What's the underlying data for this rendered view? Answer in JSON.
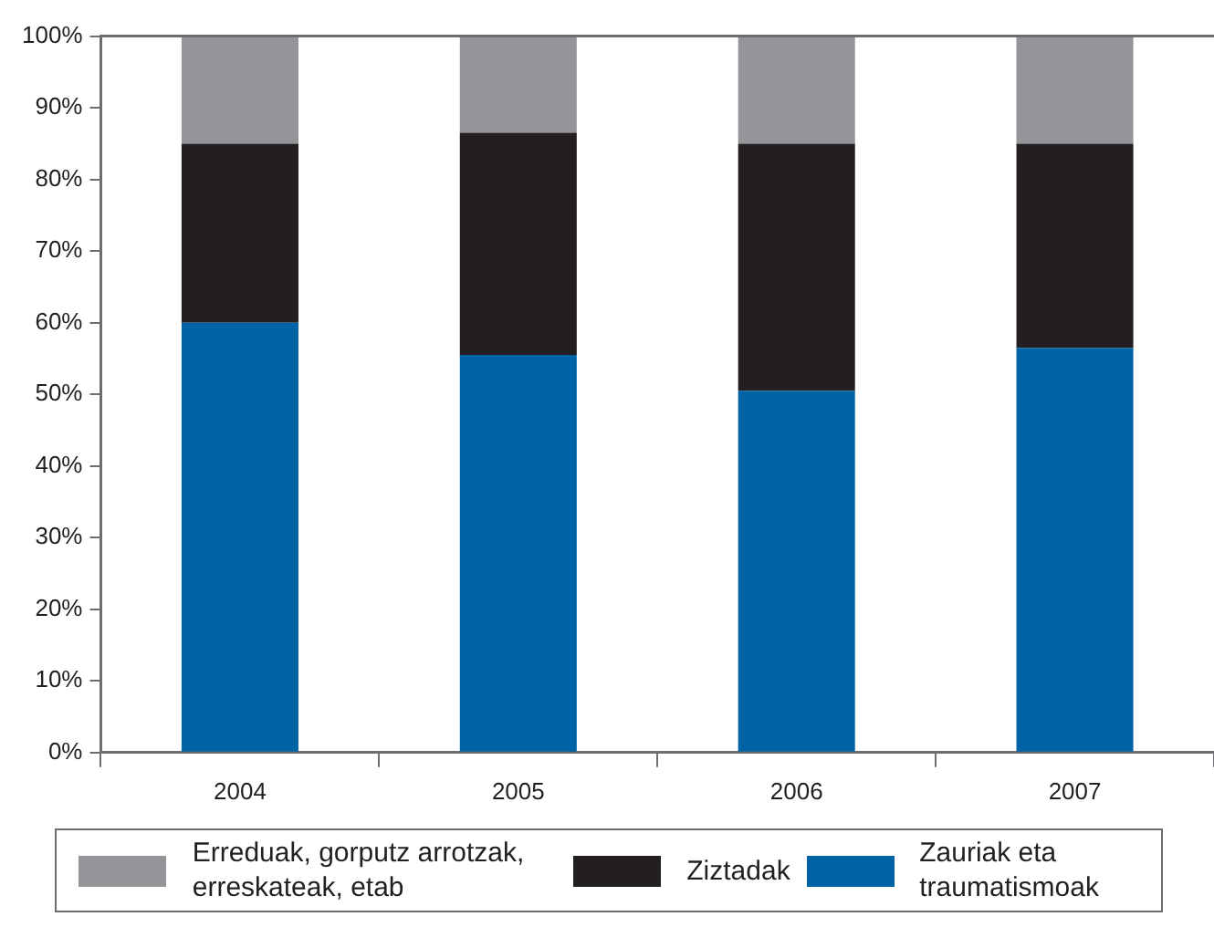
{
  "chart_data": {
    "type": "bar",
    "stacked": true,
    "categories": [
      "2004",
      "2005",
      "2006",
      "2007"
    ],
    "series": [
      {
        "name": "Zauriak eta traumatismoak",
        "color": "#0063a6",
        "values": [
          60,
          55.5,
          50.5,
          56.5
        ]
      },
      {
        "name": "Ziztadak",
        "color": "#231f20",
        "values": [
          25,
          31,
          34.5,
          28.5
        ]
      },
      {
        "name": "Erreduak, gorputz arrotzak, erreskateak, etab",
        "color": "#939598",
        "values": [
          15,
          13.5,
          15,
          15
        ]
      }
    ],
    "ylim": [
      0,
      100
    ],
    "yticks": [
      {
        "value": 0,
        "label": "0%"
      },
      {
        "value": 10,
        "label": "10%"
      },
      {
        "value": 20,
        "label": "20%"
      },
      {
        "value": 30,
        "label": "30%"
      },
      {
        "value": 40,
        "label": "40%"
      },
      {
        "value": 50,
        "label": "50%"
      },
      {
        "value": 60,
        "label": "60%"
      },
      {
        "value": 70,
        "label": "70%"
      },
      {
        "value": 80,
        "label": "80%"
      },
      {
        "value": 90,
        "label": "90%"
      },
      {
        "value": 100,
        "label": "100%"
      }
    ],
    "grid": false,
    "legend": "bottom"
  }
}
